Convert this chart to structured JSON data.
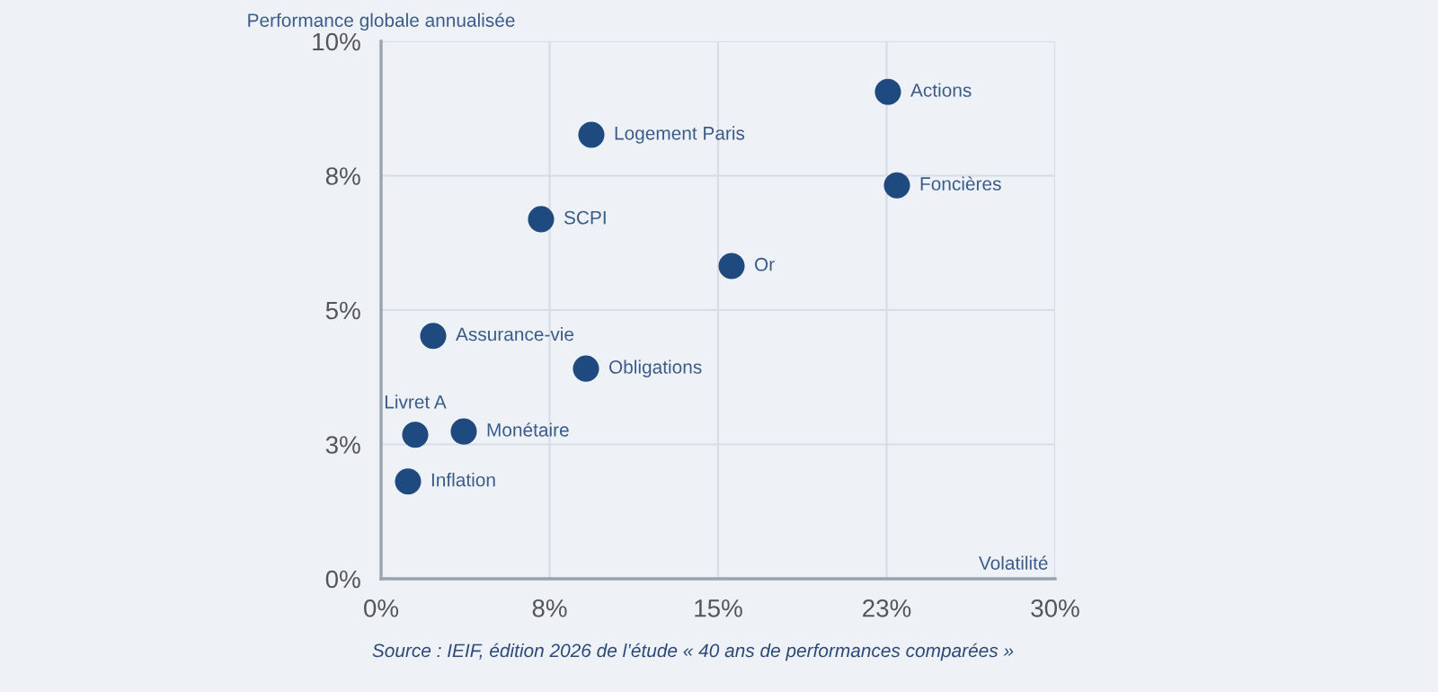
{
  "chart_data": {
    "type": "scatter",
    "ylabel": "Performance globale annualisée",
    "xlabel": "Volatilité",
    "x": [
      22.56,
      9.36,
      22.96,
      7.12,
      15.6,
      2.32,
      9.12,
      1.52,
      3.68,
      1.2
    ],
    "series": [
      {
        "color": "#1f4a80",
        "values": [
          9.06,
          8.26,
          7.32,
          6.69,
          5.82,
          4.52,
          3.91,
          2.68,
          2.74,
          1.81
        ]
      }
    ],
    "annotations": [
      {
        "text": "Actions",
        "x": 22.56,
        "y": 9.06
      },
      {
        "text": "Logement Paris",
        "x": 9.36,
        "y": 8.26
      },
      {
        "text": "Foncières",
        "x": 22.96,
        "y": 7.32
      },
      {
        "text": "SCPI",
        "x": 7.12,
        "y": 6.69
      },
      {
        "text": "Or",
        "x": 15.6,
        "y": 5.82
      },
      {
        "text": "Assurance-vie",
        "x": 2.32,
        "y": 4.52
      },
      {
        "text": "Obligations",
        "x": 9.12,
        "y": 3.91
      },
      {
        "text": "Livret A",
        "x": 1.52,
        "y": 2.68
      },
      {
        "text": "Monétaire",
        "x": 3.68,
        "y": 2.74
      },
      {
        "text": "Inflation",
        "x": 1.2,
        "y": 1.81
      },
      "Source : IEIF, édition 2026 de l’étude « 40 ans de performances comparées »"
    ],
    "xlim": [
      0,
      30
    ],
    "ylim": [
      0,
      10
    ],
    "xticks": [
      {
        "value": 0,
        "label": "0%"
      },
      {
        "value": 7.5,
        "label": "8%"
      },
      {
        "value": 15,
        "label": "15%"
      },
      {
        "value": 22.5,
        "label": "23%"
      },
      {
        "value": 30,
        "label": "30%"
      }
    ],
    "yticks": [
      {
        "value": 0,
        "label": "0%"
      },
      {
        "value": 2.5,
        "label": "3%"
      },
      {
        "value": 5,
        "label": "5%"
      },
      {
        "value": 7.5,
        "label": "8%"
      },
      {
        "value": 10,
        "label": "10%"
      }
    ],
    "grid": true,
    "marker": "circle"
  }
}
